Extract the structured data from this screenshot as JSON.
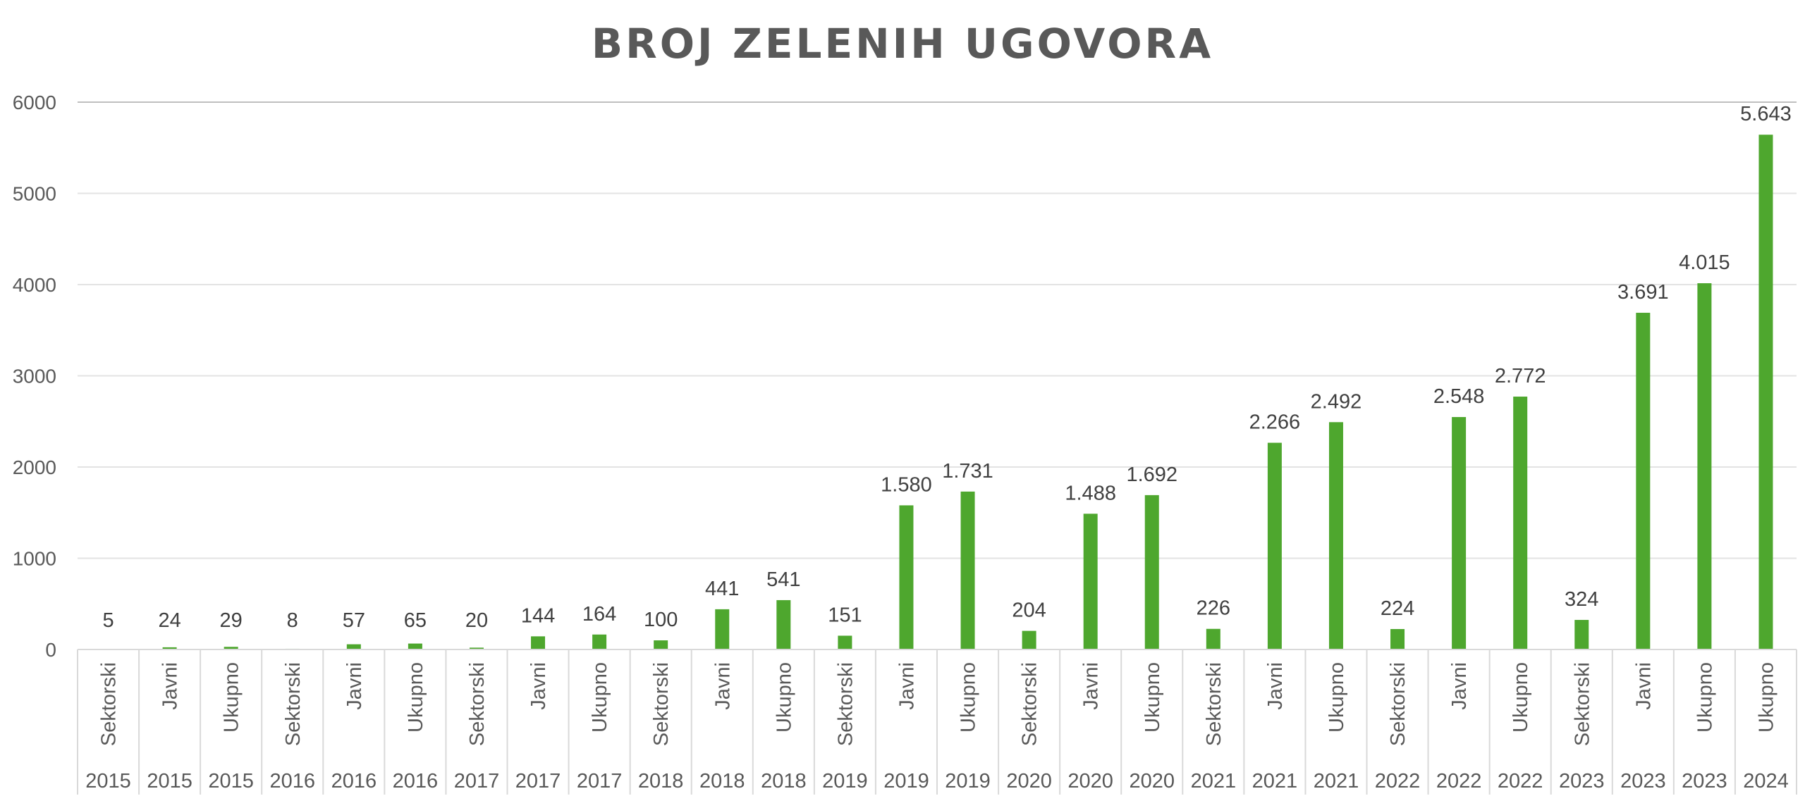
{
  "chart_data": {
    "type": "bar",
    "title": "BROJ ZELENIH UGOVORA",
    "xlabel": "",
    "ylabel": "",
    "ylim": [
      0,
      6000
    ],
    "yticks": [
      0,
      1000,
      2000,
      3000,
      4000,
      5000,
      6000
    ],
    "grid": true,
    "legend": "none",
    "bar_color": "#4EA72E",
    "categories": [
      {
        "label": "Sektorski",
        "year": "2015"
      },
      {
        "label": "Javni",
        "year": "2015"
      },
      {
        "label": "Ukupno",
        "year": "2015"
      },
      {
        "label": "Sektorski",
        "year": "2016"
      },
      {
        "label": "Javni",
        "year": "2016"
      },
      {
        "label": "Ukupno",
        "year": "2016"
      },
      {
        "label": "Sektorski",
        "year": "2017"
      },
      {
        "label": "Javni",
        "year": "2017"
      },
      {
        "label": "Ukupno",
        "year": "2017"
      },
      {
        "label": "Sektorski",
        "year": "2018"
      },
      {
        "label": "Javni",
        "year": "2018"
      },
      {
        "label": "Ukupno",
        "year": "2018"
      },
      {
        "label": "Sektorski",
        "year": "2019"
      },
      {
        "label": "Javni",
        "year": "2019"
      },
      {
        "label": "Ukupno",
        "year": "2019"
      },
      {
        "label": "Sektorski",
        "year": "2020"
      },
      {
        "label": "Javni",
        "year": "2020"
      },
      {
        "label": "Ukupno",
        "year": "2020"
      },
      {
        "label": "Sektorski",
        "year": "2021"
      },
      {
        "label": "Javni",
        "year": "2021"
      },
      {
        "label": "Ukupno",
        "year": "2021"
      },
      {
        "label": "Sektorski",
        "year": "2022"
      },
      {
        "label": "Javni",
        "year": "2022"
      },
      {
        "label": "Ukupno",
        "year": "2022"
      },
      {
        "label": "Sektorski",
        "year": "2023"
      },
      {
        "label": "Javni",
        "year": "2023"
      },
      {
        "label": "Ukupno",
        "year": "2023"
      },
      {
        "label": "Ukupno",
        "year": "2024"
      }
    ],
    "values": [
      5,
      24,
      29,
      8,
      57,
      65,
      20,
      144,
      164,
      100,
      441,
      541,
      151,
      1580,
      1731,
      204,
      1488,
      1692,
      226,
      2266,
      2492,
      224,
      2548,
      2772,
      324,
      3691,
      4015,
      5643
    ],
    "data_labels": [
      "5",
      "24",
      "29",
      "8",
      "57",
      "65",
      "20",
      "144",
      "164",
      "100",
      "441",
      "541",
      "151",
      "1.580",
      "1.731",
      "204",
      "1.488",
      "1.692",
      "226",
      "2.266",
      "2.492",
      "224",
      "2.548",
      "2.772",
      "324",
      "3.691",
      "4.015",
      "5.643"
    ]
  }
}
